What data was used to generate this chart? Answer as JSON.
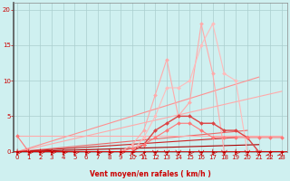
{
  "xlabel": "Vent moyen/en rafales ( km/h )",
  "xlabel_color": "#cc0000",
  "bg_color": "#cff0f0",
  "grid_color": "#aacece",
  "x_ticks": [
    0,
    1,
    2,
    3,
    4,
    5,
    6,
    7,
    8,
    9,
    10,
    11,
    12,
    13,
    14,
    15,
    16,
    17,
    18,
    19,
    20,
    21,
    22,
    23
  ],
  "y_ticks": [
    0,
    5,
    10,
    15,
    20
  ],
  "xlim": [
    -0.3,
    23.5
  ],
  "ylim": [
    0,
    21
  ],
  "lines": [
    {
      "x": [
        0,
        23
      ],
      "y": [
        0,
        8.5
      ],
      "color": "#ffaaaa",
      "lw": 0.8,
      "marker": "None",
      "ms": 0,
      "alpha": 1.0
    },
    {
      "x": [
        0,
        21
      ],
      "y": [
        0,
        10.5
      ],
      "color": "#ff9090",
      "lw": 0.8,
      "marker": "None",
      "ms": 0,
      "alpha": 1.0
    },
    {
      "x": [
        0,
        20
      ],
      "y": [
        0,
        3
      ],
      "color": "#ee6666",
      "lw": 0.8,
      "marker": "None",
      "ms": 0,
      "alpha": 1.0
    },
    {
      "x": [
        0,
        19
      ],
      "y": [
        0,
        2
      ],
      "color": "#cc2222",
      "lw": 0.8,
      "marker": "None",
      "ms": 0,
      "alpha": 1.0
    },
    {
      "x": [
        0,
        21
      ],
      "y": [
        0,
        1
      ],
      "color": "#aa0000",
      "lw": 0.8,
      "marker": "None",
      "ms": 0,
      "alpha": 1.0
    },
    {
      "x": [
        0,
        23
      ],
      "y": [
        2.2,
        2.2
      ],
      "color": "#ffaaaa",
      "lw": 0.8,
      "marker": "None",
      "ms": 0,
      "alpha": 1.0
    },
    {
      "x": [
        0,
        1,
        2,
        3,
        4,
        5,
        6,
        7,
        8,
        9,
        10,
        11,
        12,
        13,
        14,
        15,
        16,
        17,
        18,
        19,
        20,
        21,
        22,
        23
      ],
      "y": [
        0,
        0,
        0,
        0,
        0,
        0,
        0,
        0,
        0,
        0,
        1,
        3,
        8,
        13,
        5,
        7,
        18,
        11,
        0,
        0,
        0,
        0,
        0,
        0
      ],
      "color": "#ffaaaa",
      "lw": 0.8,
      "marker": "D",
      "ms": 2.0,
      "alpha": 1.0
    },
    {
      "x": [
        0,
        1,
        2,
        3,
        4,
        5,
        6,
        7,
        8,
        9,
        10,
        11,
        12,
        13,
        14,
        15,
        16,
        17,
        18,
        19,
        20,
        21,
        22,
        23
      ],
      "y": [
        0,
        0,
        0,
        0,
        0,
        0,
        0,
        0,
        0,
        0,
        0,
        2,
        5,
        9,
        9,
        10,
        15,
        18,
        11,
        10,
        0,
        0,
        0,
        0
      ],
      "color": "#ffbbbb",
      "lw": 0.8,
      "marker": "D",
      "ms": 2.0,
      "alpha": 1.0
    },
    {
      "x": [
        0,
        1,
        2,
        3,
        4,
        5,
        6,
        7,
        8,
        9,
        10,
        11,
        12,
        13,
        14,
        15,
        16,
        17,
        18,
        19,
        20,
        21,
        22,
        23
      ],
      "y": [
        0,
        0,
        0,
        0,
        0,
        0,
        0,
        0,
        0,
        0,
        0,
        1,
        3,
        4,
        5,
        5,
        4,
        4,
        3,
        3,
        2,
        0,
        0,
        0
      ],
      "color": "#dd4444",
      "lw": 1.0,
      "marker": "D",
      "ms": 2.0,
      "alpha": 1.0
    },
    {
      "x": [
        0,
        1,
        2,
        3,
        4,
        5,
        6,
        7,
        8,
        9,
        10,
        11,
        12,
        13,
        14,
        15,
        16,
        17,
        18,
        19,
        20,
        21,
        22,
        23
      ],
      "y": [
        2.2,
        0,
        0,
        0,
        0,
        0,
        0,
        0,
        0,
        0,
        0.5,
        1,
        2,
        3,
        4,
        4,
        3,
        2,
        2,
        2,
        2,
        2,
        2,
        2
      ],
      "color": "#ff7777",
      "lw": 0.8,
      "marker": "D",
      "ms": 2.0,
      "alpha": 1.0
    },
    {
      "x": [
        0,
        1,
        2,
        3,
        4,
        5,
        6,
        7,
        8,
        9,
        10,
        11,
        12,
        13,
        14,
        15,
        16,
        17,
        18,
        19,
        20,
        21,
        22,
        23
      ],
      "y": [
        0,
        0,
        0,
        0,
        0,
        0,
        0,
        0,
        0,
        0,
        0,
        0,
        0,
        0,
        0,
        0,
        0,
        0,
        0,
        0,
        0,
        0,
        0,
        0
      ],
      "color": "#aa0000",
      "lw": 0.8,
      "marker": "D",
      "ms": 1.5,
      "alpha": 1.0
    }
  ],
  "tick_fontsize": 5,
  "label_fontsize": 5.5
}
